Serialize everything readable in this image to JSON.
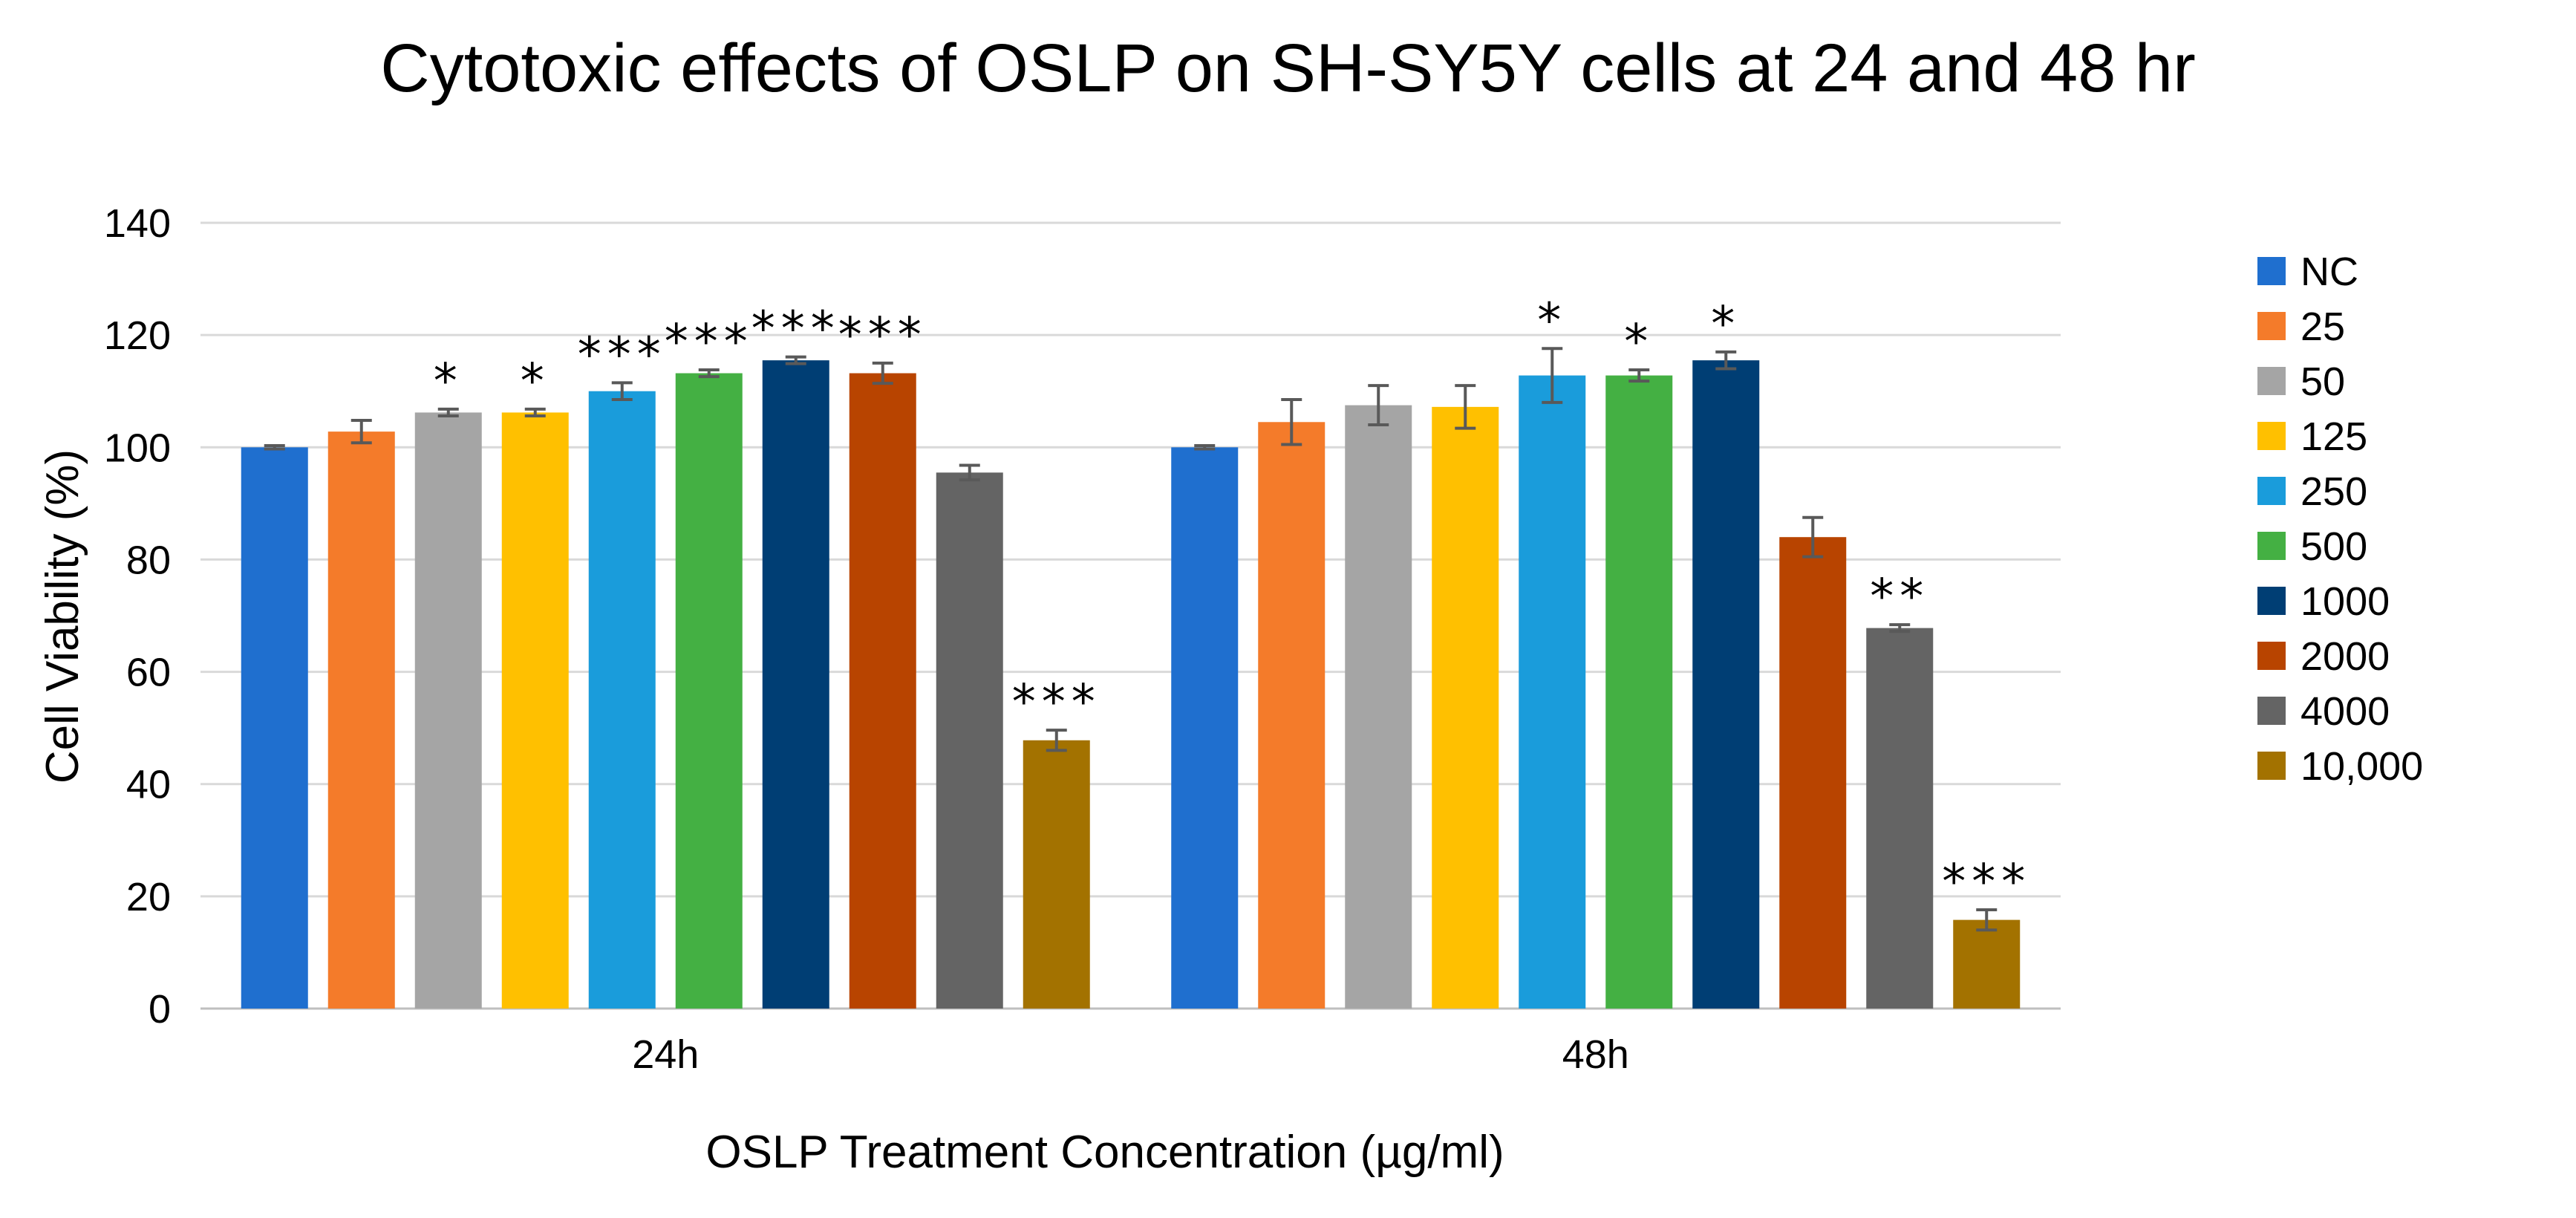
{
  "chart_data": {
    "type": "bar",
    "title": "Cytotoxic effects of OSLP on SH-SY5Y cells at 24 and 48 hr",
    "xlabel": "OSLP Treatment Concentration (µg/ml)",
    "ylabel": "Cell Viability (%)",
    "ylim": [
      0,
      140
    ],
    "yticks": [
      "0",
      "20",
      "40",
      "60",
      "80",
      "100",
      "120",
      "140"
    ],
    "grid": true,
    "legend_position": "right",
    "categories": [
      "24h",
      "48h"
    ],
    "series": [
      {
        "name": "NC",
        "color": "#1f6fcf",
        "values": [
          100,
          100
        ],
        "errors": [
          0.3,
          0.3
        ],
        "sig": [
          "",
          ""
        ]
      },
      {
        "name": "25",
        "color": "#f47b2a",
        "values": [
          102.8,
          104.5
        ],
        "errors": [
          2.0,
          4.0
        ],
        "sig": [
          "",
          ""
        ]
      },
      {
        "name": "50",
        "color": "#a5a5a5",
        "values": [
          106.2,
          107.5
        ],
        "errors": [
          0.6,
          3.5
        ],
        "sig": [
          "*",
          ""
        ]
      },
      {
        "name": "125",
        "color": "#ffc000",
        "values": [
          106.2,
          107.2
        ],
        "errors": [
          0.6,
          3.8
        ],
        "sig": [
          "*",
          ""
        ]
      },
      {
        "name": "250",
        "color": "#1a9cdb",
        "values": [
          110.0,
          112.8
        ],
        "errors": [
          1.5,
          4.8
        ],
        "sig": [
          "***",
          "*"
        ]
      },
      {
        "name": "500",
        "color": "#44b043",
        "values": [
          113.2,
          112.8
        ],
        "errors": [
          0.6,
          1.0
        ],
        "sig": [
          "***",
          "*"
        ]
      },
      {
        "name": "1000",
        "color": "#003e74",
        "values": [
          115.5,
          115.5
        ],
        "errors": [
          0.6,
          1.5
        ],
        "sig": [
          "***",
          "*"
        ]
      },
      {
        "name": "2000",
        "color": "#b84400",
        "values": [
          113.2,
          84.0
        ],
        "errors": [
          1.8,
          3.5
        ],
        "sig": [
          "***",
          ""
        ]
      },
      {
        "name": "4000",
        "color": "#646464",
        "values": [
          95.5,
          67.8
        ],
        "errors": [
          1.3,
          0.6
        ],
        "sig": [
          "",
          "**"
        ]
      },
      {
        "name": "10,000",
        "color": "#a37200",
        "values": [
          47.8,
          15.8
        ],
        "errors": [
          1.8,
          1.8
        ],
        "sig": [
          "***",
          "***"
        ]
      }
    ]
  }
}
